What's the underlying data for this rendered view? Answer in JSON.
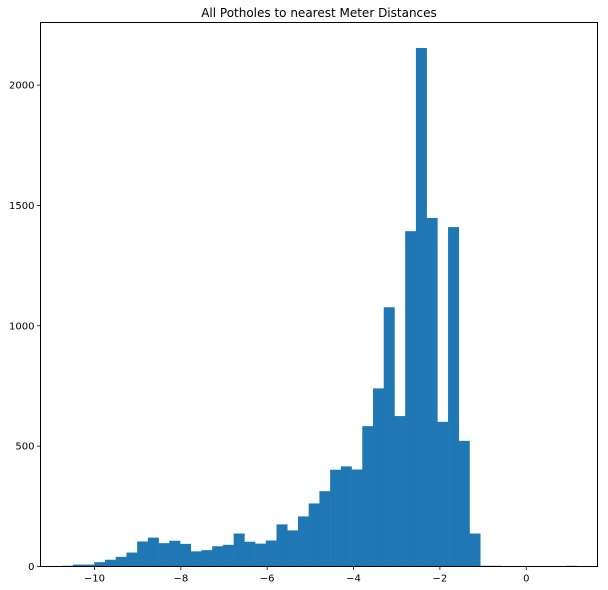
{
  "chart_data": {
    "type": "bar",
    "title": "All Potholes to nearest Meter Distances",
    "xlabel": "",
    "ylabel": "",
    "xlim": [
      -11.25,
      1.65
    ],
    "ylim": [
      0,
      2260
    ],
    "x_ticks": [
      -10,
      -8,
      -6,
      -4,
      -2,
      0
    ],
    "y_ticks": [
      0,
      500,
      1000,
      1500,
      2000
    ],
    "bin_start": -10.75,
    "bin_width": 0.2483,
    "bin_count": 50,
    "bar_color": "#1f77b4",
    "grid": false,
    "series": [
      {
        "values": [
          3,
          8,
          8,
          18,
          28,
          40,
          58,
          104,
          120,
          97,
          107,
          94,
          63,
          68,
          84,
          90,
          137,
          103,
          95,
          108,
          175,
          150,
          208,
          262,
          313,
          402,
          416,
          403,
          583,
          740,
          1077,
          625,
          1393,
          2154,
          1448,
          601,
          1410,
          522,
          137,
          3,
          3,
          0,
          0,
          0,
          0,
          0,
          0,
          3,
          0,
          0
        ]
      }
    ]
  }
}
